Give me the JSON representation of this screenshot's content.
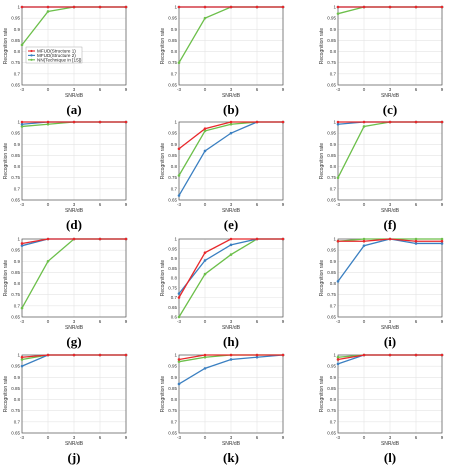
{
  "colors": {
    "structure1": "#e8282b",
    "structure2": "#3a7fc1",
    "nntech": "#6cbf4a",
    "grid": "#e4e4e4",
    "axis": "#555555"
  },
  "chart_data": [
    {
      "type": "line",
      "panel": "(a)",
      "xlabel": "SNR/dB",
      "ylabel": "Recognition rate",
      "x": [
        -3,
        0,
        3,
        6,
        9
      ],
      "x_ticks": [
        "-3",
        "0",
        "3",
        "6",
        "9"
      ],
      "ylim": [
        0.65,
        1
      ],
      "y_ticks": [
        "0.65",
        "0.7",
        "0.75",
        "0.8",
        "0.85",
        "0.9",
        "0.95",
        "1"
      ],
      "grid": true,
      "legend": "top-left",
      "series": [
        {
          "name": "MFUD(Structure 1)",
          "values": [
            1,
            1,
            1,
            1,
            1
          ]
        },
        {
          "name": "MFUD(Structure 2)",
          "values": [
            1,
            1,
            1,
            1,
            1
          ]
        },
        {
          "name": "NN(Technique in [15])",
          "values": [
            0.83,
            0.98,
            1,
            1,
            1
          ]
        }
      ]
    },
    {
      "type": "line",
      "panel": "(b)",
      "xlabel": "SNR/dB",
      "ylabel": "Recognition rate",
      "x": [
        -3,
        0,
        3,
        6,
        9
      ],
      "x_ticks": [
        "-3",
        "0",
        "3",
        "6",
        "9"
      ],
      "ylim": [
        0.65,
        1
      ],
      "y_ticks": [
        "0.65",
        "0.7",
        "0.75",
        "0.8",
        "0.85",
        "0.9",
        "0.95",
        "1"
      ],
      "grid": true,
      "series": [
        {
          "values": [
            1,
            1,
            1,
            1,
            1
          ]
        },
        {
          "values": [
            1,
            1,
            1,
            1,
            1
          ]
        },
        {
          "values": [
            0.75,
            0.95,
            1,
            1,
            1
          ]
        }
      ]
    },
    {
      "type": "line",
      "panel": "(c)",
      "xlabel": "SNR/dB",
      "ylabel": "Recognition rate",
      "x": [
        -3,
        0,
        3,
        6,
        9
      ],
      "x_ticks": [
        "-3",
        "0",
        "3",
        "6",
        "9"
      ],
      "ylim": [
        0.65,
        1
      ],
      "y_ticks": [
        "0.65",
        "0.7",
        "0.75",
        "0.8",
        "0.85",
        "0.9",
        "0.95",
        "1"
      ],
      "grid": true,
      "series": [
        {
          "values": [
            1,
            1,
            1,
            1,
            1
          ]
        },
        {
          "values": [
            1,
            1,
            1,
            1,
            1
          ]
        },
        {
          "values": [
            0.97,
            1,
            1,
            1,
            1
          ]
        }
      ]
    },
    {
      "type": "line",
      "panel": "(d)",
      "xlabel": "SNR/dB",
      "ylabel": "Recognition rate",
      "x": [
        -3,
        0,
        3,
        6,
        9
      ],
      "x_ticks": [
        "-3",
        "0",
        "3",
        "6",
        "9"
      ],
      "ylim": [
        0.65,
        1
      ],
      "y_ticks": [
        "0.65",
        "0.7",
        "0.75",
        "0.8",
        "0.85",
        "0.9",
        "0.95",
        "1"
      ],
      "grid": true,
      "series": [
        {
          "values": [
            1,
            1,
            1,
            1,
            1
          ]
        },
        {
          "values": [
            0.99,
            1,
            1,
            1,
            1
          ]
        },
        {
          "values": [
            0.98,
            0.99,
            1,
            1,
            1
          ]
        }
      ]
    },
    {
      "type": "line",
      "panel": "(e)",
      "xlabel": "SNR/dB",
      "ylabel": "Recognition rate",
      "x": [
        -3,
        0,
        3,
        6,
        9
      ],
      "x_ticks": [
        "-3",
        "0",
        "3",
        "6",
        "9"
      ],
      "ylim": [
        0.65,
        1
      ],
      "y_ticks": [
        "0.65",
        "0.7",
        "0.75",
        "0.8",
        "0.85",
        "0.9",
        "0.95",
        "1"
      ],
      "grid": true,
      "series": [
        {
          "values": [
            0.88,
            0.97,
            1,
            1,
            1
          ]
        },
        {
          "values": [
            0.67,
            0.87,
            0.95,
            1,
            1
          ]
        },
        {
          "values": [
            0.76,
            0.96,
            0.99,
            1,
            1
          ]
        }
      ]
    },
    {
      "type": "line",
      "panel": "(f)",
      "xlabel": "SNR/dB",
      "ylabel": "Recognition rate",
      "x": [
        -3,
        0,
        3,
        6,
        9
      ],
      "x_ticks": [
        "-3",
        "0",
        "3",
        "6",
        "9"
      ],
      "ylim": [
        0.65,
        1
      ],
      "y_ticks": [
        "0.65",
        "0.7",
        "0.75",
        "0.8",
        "0.85",
        "0.9",
        "0.95",
        "1"
      ],
      "grid": true,
      "series": [
        {
          "values": [
            1,
            1,
            1,
            1,
            1
          ]
        },
        {
          "values": [
            0.99,
            1,
            1,
            1,
            1
          ]
        },
        {
          "values": [
            0.75,
            0.98,
            1,
            1,
            1
          ]
        }
      ]
    },
    {
      "type": "line",
      "panel": "(g)",
      "xlabel": "SNR/dB",
      "ylabel": "Recognition rate",
      "x": [
        -3,
        0,
        3,
        6,
        9
      ],
      "x_ticks": [
        "-3",
        "0",
        "3",
        "6",
        "9"
      ],
      "ylim": [
        0.65,
        1
      ],
      "y_ticks": [
        "0.65",
        "0.7",
        "0.75",
        "0.8",
        "0.85",
        "0.9",
        "0.95",
        "1"
      ],
      "grid": true,
      "series": [
        {
          "values": [
            0.98,
            1,
            1,
            1,
            1
          ]
        },
        {
          "values": [
            0.97,
            1,
            1,
            1,
            1
          ]
        },
        {
          "values": [
            0.69,
            0.9,
            1,
            1,
            1
          ]
        }
      ]
    },
    {
      "type": "line",
      "panel": "(h)",
      "xlabel": "SNR/dB",
      "ylabel": "Recognition rate",
      "x": [
        -3,
        0,
        3,
        6,
        9
      ],
      "x_ticks": [
        "-3",
        "0",
        "3",
        "6",
        "9"
      ],
      "ylim": [
        0.6,
        1
      ],
      "y_ticks": [
        "0.6",
        "0.65",
        "0.7",
        "0.75",
        "0.8",
        "0.85",
        "0.9",
        "0.95",
        "1"
      ],
      "grid": true,
      "series": [
        {
          "values": [
            0.7,
            0.93,
            1,
            1,
            1
          ]
        },
        {
          "values": [
            0.72,
            0.89,
            0.97,
            1,
            1
          ]
        },
        {
          "values": [
            0.6,
            0.82,
            0.92,
            1,
            1
          ]
        }
      ]
    },
    {
      "type": "line",
      "panel": "(i)",
      "xlabel": "SNR/dB",
      "ylabel": "Recognition rate",
      "x": [
        -3,
        0,
        3,
        6,
        9
      ],
      "x_ticks": [
        "-3",
        "0",
        "3",
        "6",
        "9"
      ],
      "ylim": [
        0.65,
        1
      ],
      "y_ticks": [
        "0.65",
        "0.7",
        "0.75",
        "0.8",
        "0.85",
        "0.9",
        "0.95",
        "1"
      ],
      "grid": true,
      "series": [
        {
          "values": [
            0.99,
            0.99,
            1,
            0.99,
            0.99
          ]
        },
        {
          "values": [
            0.81,
            0.97,
            1,
            0.98,
            0.98
          ]
        },
        {
          "values": [
            0.99,
            1,
            1,
            1,
            1
          ]
        }
      ]
    },
    {
      "type": "line",
      "panel": "(j)",
      "xlabel": "SNR/dB",
      "ylabel": "Recognition rate",
      "x": [
        -3,
        0,
        3,
        6,
        9
      ],
      "x_ticks": [
        "-3",
        "0",
        "3",
        "6",
        "9"
      ],
      "ylim": [
        0.65,
        1
      ],
      "y_ticks": [
        "0.65",
        "0.7",
        "0.75",
        "0.8",
        "0.85",
        "0.9",
        "0.95",
        "1"
      ],
      "grid": true,
      "series": [
        {
          "values": [
            0.99,
            1,
            1,
            1,
            1
          ]
        },
        {
          "values": [
            0.95,
            1,
            1,
            1,
            1
          ]
        },
        {
          "values": [
            0.98,
            1,
            1,
            1,
            1
          ]
        }
      ]
    },
    {
      "type": "line",
      "panel": "(k)",
      "xlabel": "SNR/dB",
      "ylabel": "Recognition rate",
      "x": [
        -3,
        0,
        3,
        6,
        9
      ],
      "x_ticks": [
        "-3",
        "0",
        "3",
        "6",
        "9"
      ],
      "ylim": [
        0.65,
        1
      ],
      "y_ticks": [
        "0.65",
        "0.7",
        "0.75",
        "0.8",
        "0.85",
        "0.9",
        "0.95",
        "1"
      ],
      "grid": true,
      "series": [
        {
          "values": [
            0.98,
            1,
            1,
            1,
            1
          ]
        },
        {
          "values": [
            0.87,
            0.94,
            0.98,
            0.99,
            1
          ]
        },
        {
          "values": [
            0.97,
            0.99,
            1,
            1,
            1
          ]
        }
      ]
    },
    {
      "type": "line",
      "panel": "(l)",
      "xlabel": "SNR/dB",
      "ylabel": "Recognition rate",
      "x": [
        -3,
        0,
        3,
        6,
        9
      ],
      "x_ticks": [
        "-3",
        "0",
        "3",
        "6",
        "9"
      ],
      "ylim": [
        0.65,
        1
      ],
      "y_ticks": [
        "0.65",
        "0.7",
        "0.75",
        "0.8",
        "0.85",
        "0.9",
        "0.95",
        "1"
      ],
      "grid": true,
      "series": [
        {
          "values": [
            0.98,
            1,
            1,
            1,
            1
          ]
        },
        {
          "values": [
            0.96,
            1,
            1,
            1,
            1
          ]
        },
        {
          "values": [
            0.99,
            1,
            1,
            1,
            1
          ]
        }
      ]
    }
  ]
}
